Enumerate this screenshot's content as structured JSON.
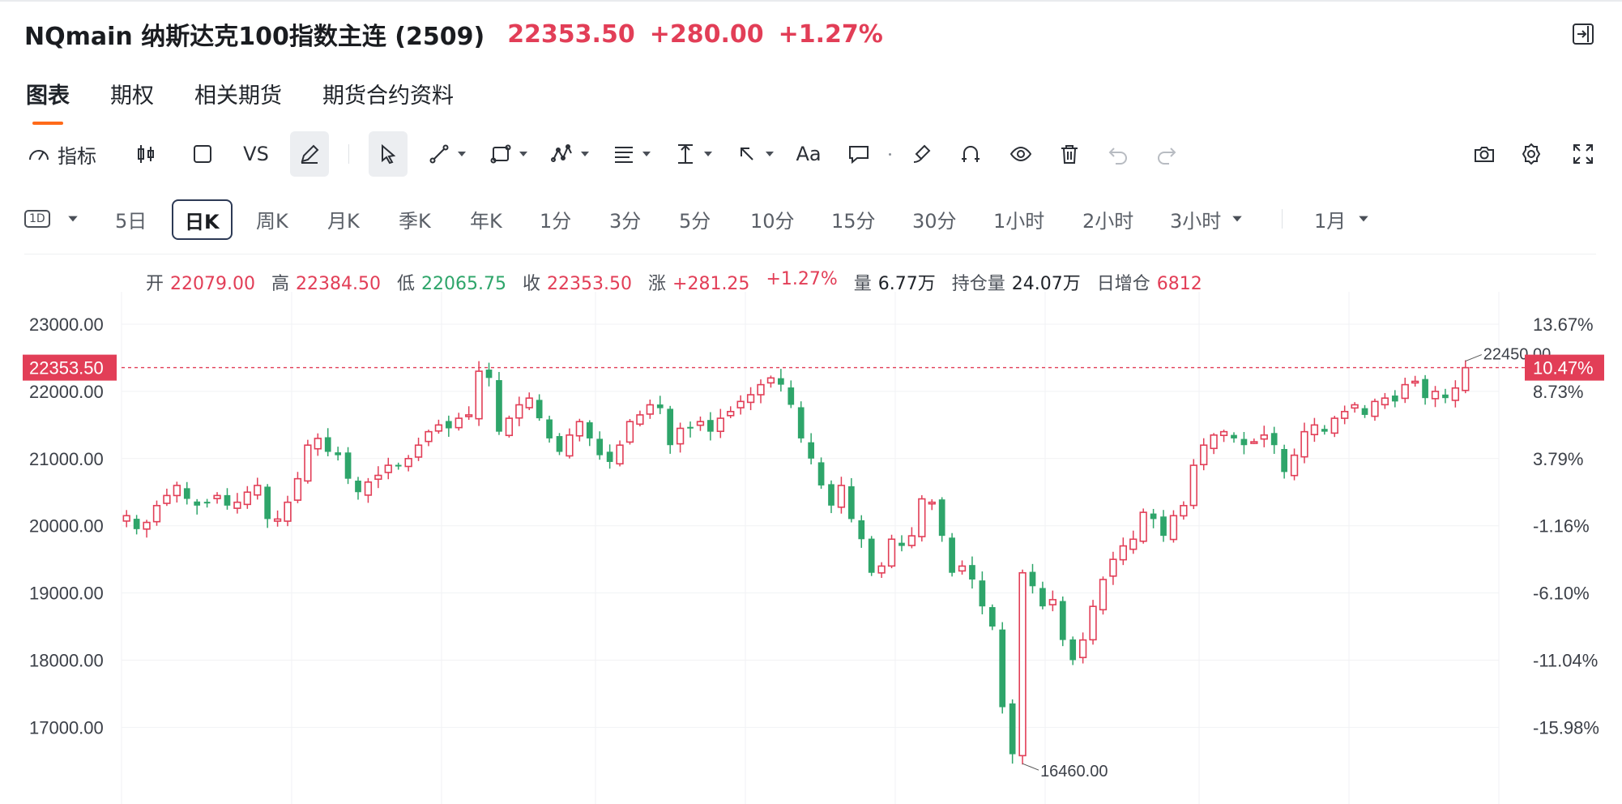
{
  "header": {
    "title": "NQmain 纳斯达克100指数主连 (2509)",
    "price": "22353.50",
    "change": "+280.00",
    "change_pct": "+1.27%"
  },
  "tabs": [
    "图表",
    "期权",
    "相关期货",
    "期货合约资料"
  ],
  "toolbar": {
    "indicator_label": "指标",
    "vs_label": "VS",
    "text_label": "Aa",
    "icons": [
      "indicator-icon",
      "candlestick-icon",
      "square-icon",
      "vs-compare",
      "pen-icon",
      "cursor-icon",
      "line-tool-icon",
      "shape-tool-icon",
      "pattern-tool-icon",
      "fib-tool-icon",
      "measure-tool-icon",
      "arrow-tool-icon",
      "text-tool-icon",
      "comment-tool-icon",
      "brush-icon",
      "magnet-icon",
      "eye-icon",
      "trash-icon",
      "undo-icon",
      "redo-icon",
      "camera-icon",
      "settings-icon",
      "fullscreen-icon"
    ]
  },
  "periods": {
    "badge": "1D",
    "items": [
      "5日",
      "日K",
      "周K",
      "月K",
      "季K",
      "年K",
      "1分",
      "3分",
      "5分",
      "10分",
      "15分",
      "30分",
      "1小时",
      "2小时",
      "3小时"
    ],
    "active": "日K",
    "range": "1月"
  },
  "ohlc": {
    "open_label": "开",
    "open": "22079.00",
    "high_label": "高",
    "high": "22384.50",
    "low_label": "低",
    "low": "22065.75",
    "close_label": "收",
    "close": "22353.50",
    "chg_label": "涨",
    "chg": "+281.25",
    "chg_pct": "+1.27%",
    "vol_label": "量",
    "vol": "6.77万",
    "oi_label": "持仓量",
    "oi": "24.07万",
    "oi_chg_label": "日增仓",
    "oi_chg": "6812"
  },
  "colors": {
    "up": "#e23e57",
    "down": "#2ea56a",
    "accent": "#ff6a1a"
  },
  "chart_data": {
    "type": "candlestick",
    "y_left_ticks": [
      "23000.00",
      "22000.00",
      "21000.00",
      "20000.00",
      "19000.00",
      "18000.00",
      "17000.00"
    ],
    "y_right_ticks": [
      "13.67%",
      "8.73%",
      "3.79%",
      "-1.16%",
      "-6.10%",
      "-11.04%",
      "-15.98%"
    ],
    "ylim": [
      16200,
      23400
    ],
    "current_price_label": "22353.50",
    "current_pct_label": "10.47%",
    "max_label": "22450.00",
    "min_label": "16460.00",
    "grid": true,
    "close_path": [
      20150,
      19950,
      20050,
      20300,
      20450,
      20600,
      20400,
      20300,
      20350,
      20450,
      20300,
      20350,
      20500,
      20600,
      20100,
      20100,
      20350,
      20700,
      21200,
      21300,
      21100,
      21050,
      20700,
      20500,
      20650,
      20750,
      20900,
      20900,
      21000,
      21200,
      21400,
      21500,
      21450,
      21600,
      21650,
      22300,
      22200,
      21400,
      21600,
      21800,
      21900,
      21600,
      21300,
      21100,
      21350,
      21550,
      21300,
      21050,
      20950,
      21200,
      21550,
      21650,
      21800,
      21750,
      21200,
      21450,
      21450,
      21550,
      21400,
      21600,
      21700,
      21850,
      21950,
      22100,
      22200,
      22100,
      21800,
      21300,
      21000,
      20600,
      20300,
      20600,
      20100,
      19800,
      19300,
      19400,
      19800,
      19700,
      19850,
      20400,
      20350,
      19850,
      19300,
      19400,
      19200,
      18800,
      18500,
      17300,
      16600,
      19300,
      19100,
      18800,
      18900,
      18300,
      18000,
      18300,
      18800,
      19200,
      19500,
      19700,
      19800,
      20200,
      20100,
      19850,
      20150,
      20300,
      20900,
      21200,
      21350,
      21400,
      21300,
      21200,
      21250,
      21350,
      21200,
      20800,
      21050,
      21400,
      21500,
      21400,
      21600,
      21700,
      21800,
      21650,
      21850,
      21900,
      21850,
      22100,
      22150,
      21900,
      22000,
      21900,
      22050,
      22353
    ]
  }
}
